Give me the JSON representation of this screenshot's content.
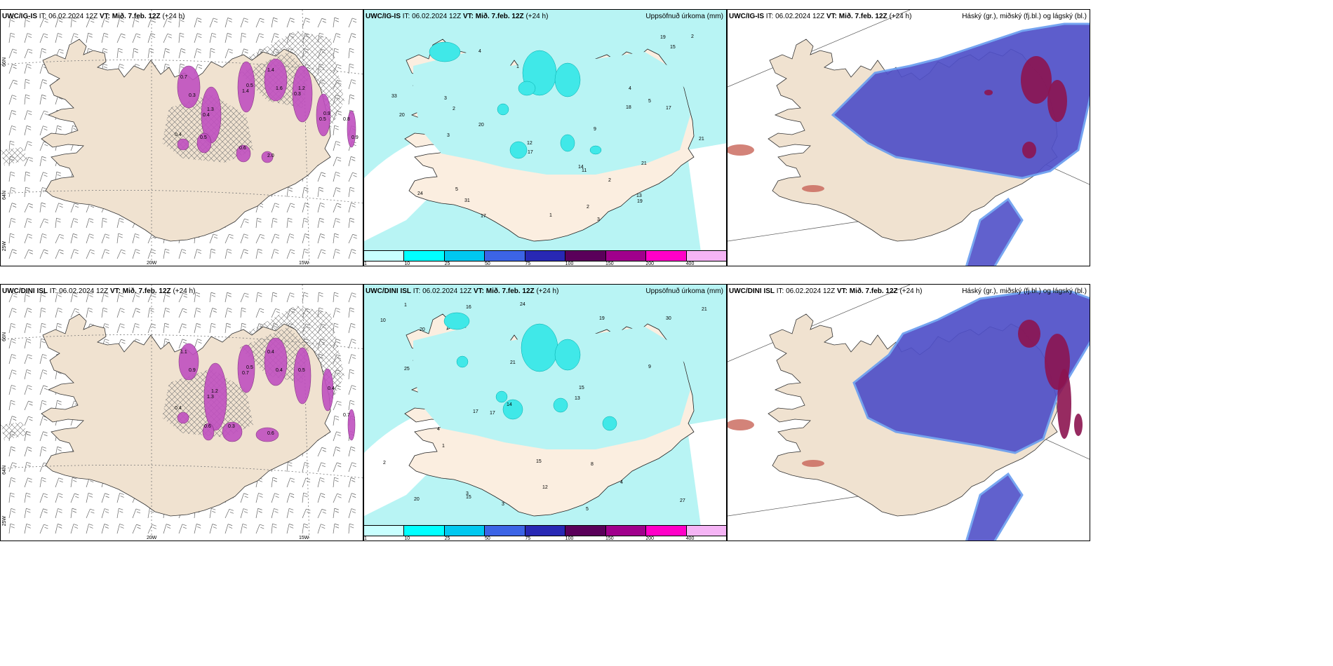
{
  "panels": [
    {
      "model": "UWC/IG-IS",
      "it_label": "IT: 06.02.2024 12Z",
      "vt_label": "VT: Mið. 7.feb. 12Z",
      "lead": "(+24 h)",
      "title_right": "",
      "type": "wind"
    },
    {
      "model": "UWC/IG-IS",
      "it_label": "IT: 06.02.2024 12Z",
      "vt_label": "VT: Mið. 7.feb. 12Z",
      "lead": "(+24 h)",
      "title_right": "Uppsöfnuð úrkoma (mm)",
      "type": "precip"
    },
    {
      "model": "UWC/IG-IS",
      "it_label": "IT: 06.02.2024 12Z",
      "vt_label": "VT: Mið. 7.feb. 12Z",
      "lead": "(+24 h)",
      "title_right": "Háský (gr.), miðský (fj.bl.) og lágský (bl.)",
      "type": "cloud"
    },
    {
      "model": "UWC/DINI ISL",
      "it_label": "IT: 06.02.2024 12Z",
      "vt_label": "VT: Mið. 7.feb. 12Z",
      "lead": "(+24 h)",
      "title_right": "",
      "type": "wind"
    },
    {
      "model": "UWC/DINI ISL",
      "it_label": "IT: 06.02.2024 12Z",
      "vt_label": "VT: Mið. 7.feb. 12Z",
      "lead": "(+24 h)",
      "title_right": "Uppsöfnuð úrkoma (mm)",
      "type": "precip"
    },
    {
      "model": "UWC/DINI ISL",
      "it_label": "IT: 06.02.2024 12Z",
      "vt_label": "VT: Mið. 7.feb. 12Z",
      "lead": "(+24 h)",
      "title_right": "Háský (gr.), miðský (fj.bl.) og lágský (bl.)",
      "type": "cloud"
    }
  ],
  "axis_labels": {
    "lat66": "66N",
    "lat64": "64N",
    "lon25": "25W",
    "lon20": "20W",
    "lon15": "15W"
  },
  "colorbar": {
    "ticks": [
      "1",
      "10",
      "25",
      "50",
      "75",
      "100",
      "150",
      "200",
      "400"
    ],
    "colors": [
      "#c8ffff",
      "#00ffff",
      "#00c8f0",
      "#3c64e6",
      "#2828b4",
      "#5a005a",
      "#a0008c",
      "#ff00c8",
      "#f5b4f5"
    ]
  },
  "colors": {
    "land": "#f0e2d0",
    "land_precip": "#fbeee0",
    "precip_light": "#b8f4f4",
    "precip_mid": "#40e8e8",
    "cloud_blue": "#5050c8",
    "cloud_dark": "#8c1450",
    "wind_purple": "#c050c0"
  },
  "precip_top_values": [
    "3",
    "4",
    "5",
    "3",
    "5",
    "2",
    "21",
    "20",
    "17",
    "31",
    "24",
    "33",
    "12",
    "14",
    "18",
    "19",
    "20",
    "15",
    "21",
    "17",
    "13",
    "11",
    "17",
    "19",
    "9",
    "4",
    "3",
    "2",
    "1",
    "1",
    "2",
    "2"
  ],
  "precip_bottom_values": [
    "3",
    "5",
    "3",
    "4",
    "16",
    "20",
    "17",
    "27",
    "24",
    "21",
    "30",
    "12",
    "14",
    "15",
    "19",
    "13",
    "25",
    "15",
    "17",
    "10",
    "8",
    "21",
    "15",
    "20",
    "9",
    "4",
    "2",
    "1",
    "1"
  ],
  "wind_top_values": [
    "0.7",
    "1.3",
    "0.5",
    "1.4",
    "1.2",
    "0.9",
    "0.8",
    "0.6",
    "2.0",
    "0.4",
    "0.5",
    "0.3",
    "0.4",
    "1.4",
    "1.6",
    "0.3",
    "0.5",
    "0.9"
  ],
  "wind_bottom_values": [
    "1.1",
    "1.2",
    "0.5",
    "0.4",
    "0.5",
    "0.4",
    "0.7",
    "0.3",
    "0.6",
    "0.4",
    "0.6",
    "0.9",
    "1.3",
    "0.7",
    "0.4"
  ]
}
